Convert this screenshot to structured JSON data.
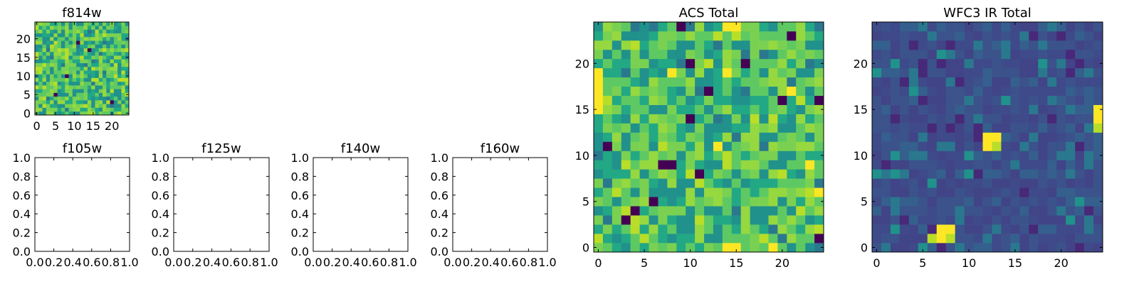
{
  "figure": {
    "colormap": [
      "#440154",
      "#3b528b",
      "#21918c",
      "#5ec962",
      "#fde725"
    ]
  },
  "chart_data": [
    {
      "id": "f814w",
      "type": "heatmap",
      "title": "f814w",
      "grid": false,
      "xlim": [
        -0.5,
        24.5
      ],
      "ylim": [
        -0.5,
        24.5
      ],
      "xticks": [
        "0",
        "5",
        "10",
        "15",
        "20"
      ],
      "yticks": [
        "0",
        "5",
        "10",
        "15",
        "20"
      ],
      "x_tick_values": [
        0,
        5,
        10,
        15,
        20
      ],
      "y_tick_values": [
        0,
        5,
        10,
        15,
        20
      ],
      "size": [
        25,
        25
      ],
      "seed": 814,
      "palette": "mid-high",
      "low_cells": [
        [
          8,
          10
        ],
        [
          14,
          17
        ],
        [
          5,
          5
        ],
        [
          11,
          19
        ],
        [
          20,
          3
        ]
      ]
    },
    {
      "id": "f105w",
      "type": "heatmap",
      "title": "f105w",
      "empty": true,
      "xlim": [
        0.0,
        1.0
      ],
      "ylim": [
        0.0,
        1.0
      ],
      "xticks": [
        "0.0",
        "0.2",
        "0.4",
        "0.6",
        "0.8",
        "1.0"
      ],
      "yticks": [
        "0.0",
        "0.2",
        "0.4",
        "0.6",
        "0.8",
        "1.0"
      ],
      "x_tick_values": [
        0.0,
        0.2,
        0.4,
        0.6,
        0.8,
        1.0
      ],
      "y_tick_values": [
        0.0,
        0.2,
        0.4,
        0.6,
        0.8,
        1.0
      ]
    },
    {
      "id": "f125w",
      "type": "heatmap",
      "title": "f125w",
      "empty": true,
      "xlim": [
        0.0,
        1.0
      ],
      "ylim": [
        0.0,
        1.0
      ],
      "xticks": [
        "0.0",
        "0.2",
        "0.4",
        "0.6",
        "0.8",
        "1.0"
      ],
      "yticks": [
        "0.0",
        "0.2",
        "0.4",
        "0.6",
        "0.8",
        "1.0"
      ],
      "x_tick_values": [
        0.0,
        0.2,
        0.4,
        0.6,
        0.8,
        1.0
      ],
      "y_tick_values": [
        0.0,
        0.2,
        0.4,
        0.6,
        0.8,
        1.0
      ]
    },
    {
      "id": "f140w",
      "type": "heatmap",
      "title": "f140w",
      "empty": true,
      "xlim": [
        0.0,
        1.0
      ],
      "ylim": [
        0.0,
        1.0
      ],
      "xticks": [
        "0.0",
        "0.2",
        "0.4",
        "0.6",
        "0.8",
        "1.0"
      ],
      "yticks": [
        "0.0",
        "0.2",
        "0.4",
        "0.6",
        "0.8",
        "1.0"
      ],
      "x_tick_values": [
        0.0,
        0.2,
        0.4,
        0.6,
        0.8,
        1.0
      ],
      "y_tick_values": [
        0.0,
        0.2,
        0.4,
        0.6,
        0.8,
        1.0
      ]
    },
    {
      "id": "f160w",
      "type": "heatmap",
      "title": "f160w",
      "empty": true,
      "xlim": [
        0.0,
        1.0
      ],
      "ylim": [
        0.0,
        1.0
      ],
      "xticks": [
        "0.0",
        "0.2",
        "0.4",
        "0.6",
        "0.8",
        "1.0"
      ],
      "yticks": [
        "0.0",
        "0.2",
        "0.4",
        "0.6",
        "0.8",
        "1.0"
      ],
      "x_tick_values": [
        0.0,
        0.2,
        0.4,
        0.6,
        0.8,
        1.0
      ],
      "y_tick_values": [
        0.0,
        0.2,
        0.4,
        0.6,
        0.8,
        1.0
      ]
    },
    {
      "id": "acs-total",
      "type": "heatmap",
      "title": "ACS Total",
      "grid": false,
      "xlim": [
        -0.5,
        24.5
      ],
      "ylim": [
        -0.5,
        24.5
      ],
      "xticks": [
        "0",
        "5",
        "10",
        "15",
        "20"
      ],
      "yticks": [
        "0",
        "5",
        "10",
        "15",
        "20"
      ],
      "x_tick_values": [
        0,
        5,
        10,
        15,
        20
      ],
      "y_tick_values": [
        0,
        5,
        10,
        15,
        20
      ],
      "size": [
        25,
        25
      ],
      "seed": 1337,
      "palette": "mid-high",
      "low_cells": [
        [
          9,
          24
        ],
        [
          21,
          23
        ],
        [
          10,
          20
        ],
        [
          16,
          20
        ],
        [
          12,
          17
        ],
        [
          20,
          16
        ],
        [
          24,
          16
        ],
        [
          10,
          14
        ],
        [
          1,
          11
        ],
        [
          7,
          9
        ],
        [
          8,
          9
        ],
        [
          6,
          5
        ],
        [
          4,
          4
        ],
        [
          3,
          3
        ],
        [
          24,
          1
        ],
        [
          11,
          8
        ]
      ],
      "high_cells": [
        [
          14,
          24
        ],
        [
          15,
          24
        ],
        [
          0,
          19
        ],
        [
          0,
          18
        ],
        [
          0,
          17
        ],
        [
          0,
          16
        ],
        [
          0,
          15
        ],
        [
          8,
          19
        ],
        [
          14,
          19
        ],
        [
          21,
          17
        ],
        [
          13,
          11
        ],
        [
          24,
          6
        ],
        [
          14,
          0
        ],
        [
          15,
          0
        ],
        [
          19,
          0
        ],
        [
          23,
          9
        ]
      ]
    },
    {
      "id": "wfc3-ir-total",
      "type": "heatmap",
      "title": "WFC3 IR Total",
      "grid": false,
      "xlim": [
        -0.5,
        24.5
      ],
      "ylim": [
        -0.5,
        24.5
      ],
      "xticks": [
        "0",
        "5",
        "10",
        "15",
        "20"
      ],
      "yticks": [
        "0",
        "5",
        "10",
        "15",
        "20"
      ],
      "x_tick_values": [
        0,
        5,
        10,
        15,
        20
      ],
      "y_tick_values": [
        0,
        5,
        10,
        15,
        20
      ],
      "size": [
        25,
        25
      ],
      "seed": 2024,
      "palette": "low",
      "high_cells": [
        [
          7,
          1
        ],
        [
          7,
          2
        ],
        [
          8,
          2
        ],
        [
          12,
          11
        ],
        [
          13,
          12
        ],
        [
          12,
          12
        ],
        [
          24,
          15
        ],
        [
          24,
          14
        ]
      ],
      "mid_cells": [
        [
          13,
          11
        ],
        [
          24,
          13
        ],
        [
          8,
          1
        ],
        [
          6,
          1
        ]
      ]
    }
  ]
}
